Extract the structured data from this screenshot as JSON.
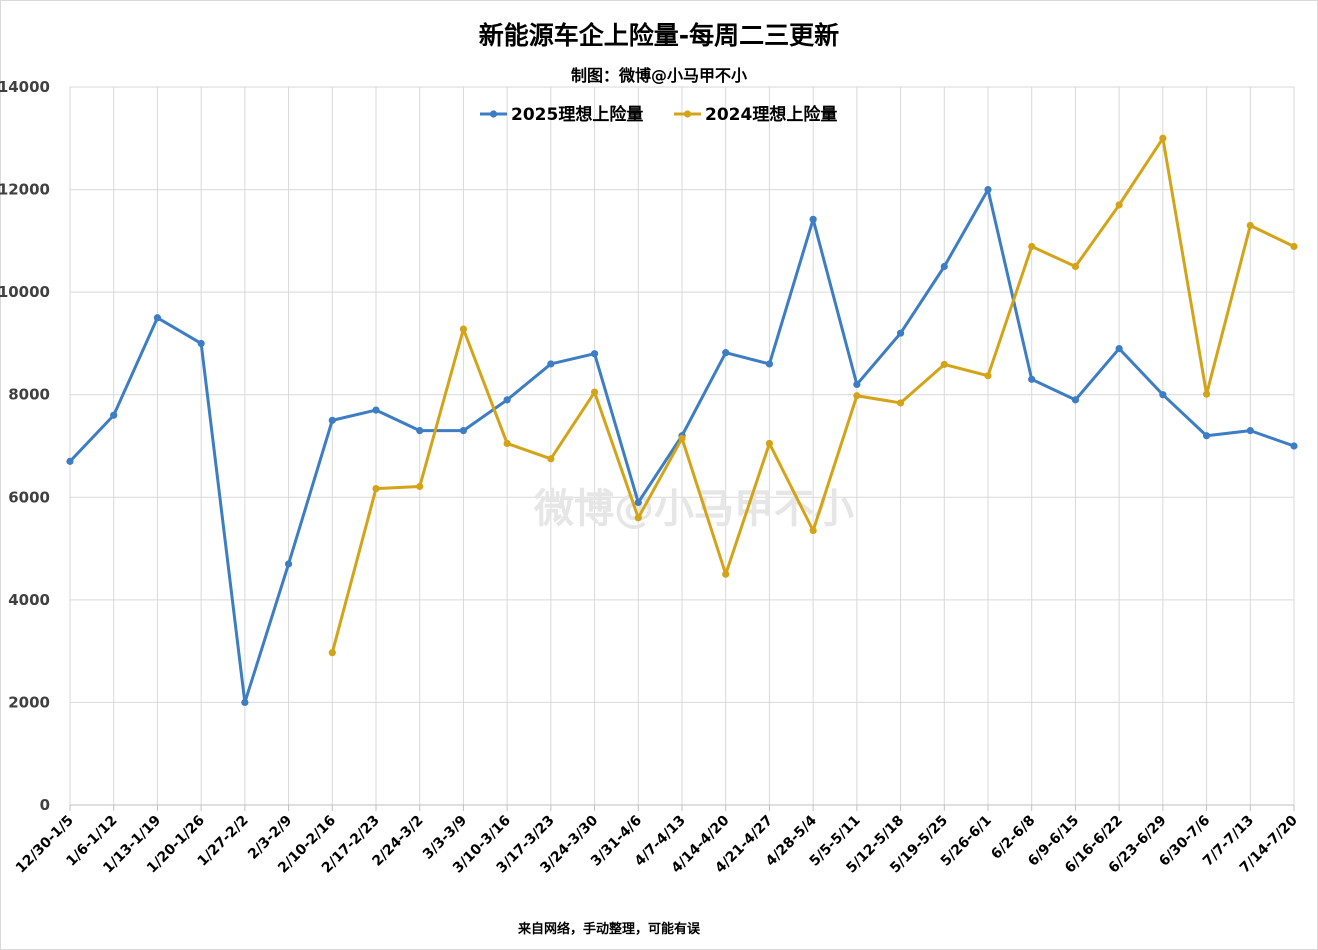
{
  "title": "新能源车企上险量-每周二三更新",
  "subtitle": "制图：微博@小马甲不小",
  "footnote": "来自网络，手动整理，可能有误",
  "watermark": "微博@小马甲不小",
  "colors": {
    "series_2025": "#3C7DC4",
    "series_2024": "#D4A418",
    "grid": "#d9d9d9"
  },
  "chart_data": {
    "type": "line",
    "title": "新能源车企上险量-每周二三更新",
    "categories": [
      "12/30-1/5",
      "1/6-1/12",
      "1/13-1/19",
      "1/20-1/26",
      "1/27-2/2",
      "2/3-2/9",
      "2/10-2/16",
      "2/17-2/23",
      "2/24-3/2",
      "3/3-3/9",
      "3/10-3/16",
      "3/17-3/23",
      "3/24-3/30",
      "3/31-4/6",
      "4/7-4/13",
      "4/14-4/20",
      "4/21-4/27",
      "4/28-5/4",
      "5/5-5/11",
      "5/12-5/18",
      "5/19-5/25",
      "5/26-6/1",
      "6/2-6/8",
      "6/9-6/15",
      "6/16-6/22",
      "6/23-6/29",
      "6/30-7/6",
      "7/7-7/13",
      "7/14-7/20"
    ],
    "ylim": [
      0,
      14000
    ],
    "yticks": [
      0,
      2000,
      4000,
      6000,
      8000,
      10000,
      12000,
      14000
    ],
    "grid": true,
    "legend_position": "top-center",
    "series": [
      {
        "name": "2025理想上险量",
        "color": "#3C7DC4",
        "values": [
          6700,
          7600,
          9500,
          9000,
          2000,
          4700,
          7500,
          7700,
          7300,
          7300,
          7900,
          8600,
          8800,
          5900,
          7200,
          8820,
          8600,
          11420,
          8200,
          9200,
          10500,
          12000,
          8300,
          7900,
          8900,
          8000,
          7200,
          7300,
          7000
        ]
      },
      {
        "name": "2024理想上险量",
        "color": "#D4A418",
        "values": [
          null,
          null,
          null,
          null,
          null,
          null,
          2970,
          6170,
          6210,
          9280,
          7050,
          6750,
          8050,
          5600,
          7150,
          4500,
          7050,
          5350,
          7980,
          7840,
          8590,
          8370,
          10890,
          10500,
          11700,
          13000,
          8010,
          11300,
          10890
        ]
      }
    ]
  }
}
